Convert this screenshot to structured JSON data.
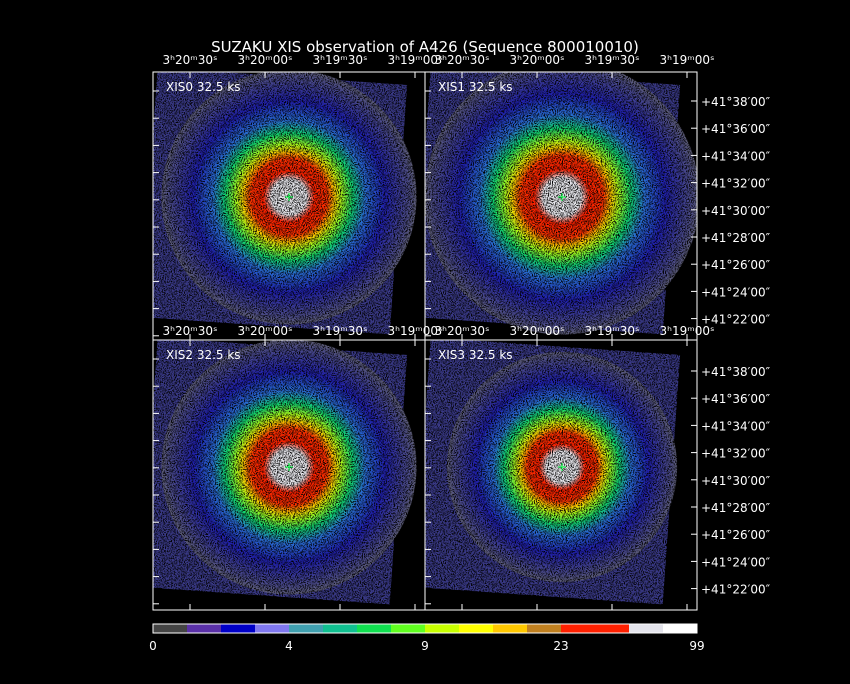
{
  "title": "SUZAKU XIS observation of A426  (Sequence 800010010)",
  "panels": [
    {
      "label": "XIS0 32.5 ks"
    },
    {
      "label": "XIS1 32.5 ks"
    },
    {
      "label": "XIS2 32.5 ks"
    },
    {
      "label": "XIS3 32.5 ks"
    }
  ],
  "ra_ticks": [
    "3ʰ20ᵐ30ˢ",
    "3ʰ20ᵐ00ˢ",
    "3ʰ19ᵐ30ˢ",
    "3ʰ19ᵐ00ˢ"
  ],
  "dec_ticks": [
    "+41°38′00″",
    "+41°36′00″",
    "+41°34′00″",
    "+41°32′00″",
    "+41°30′00″",
    "+41°28′00″",
    "+41°26′00″",
    "+41°24′00″",
    "+41°22′00″"
  ],
  "colorbar": {
    "labels": [
      "0",
      "4",
      "9",
      "23",
      "99"
    ]
  }
}
